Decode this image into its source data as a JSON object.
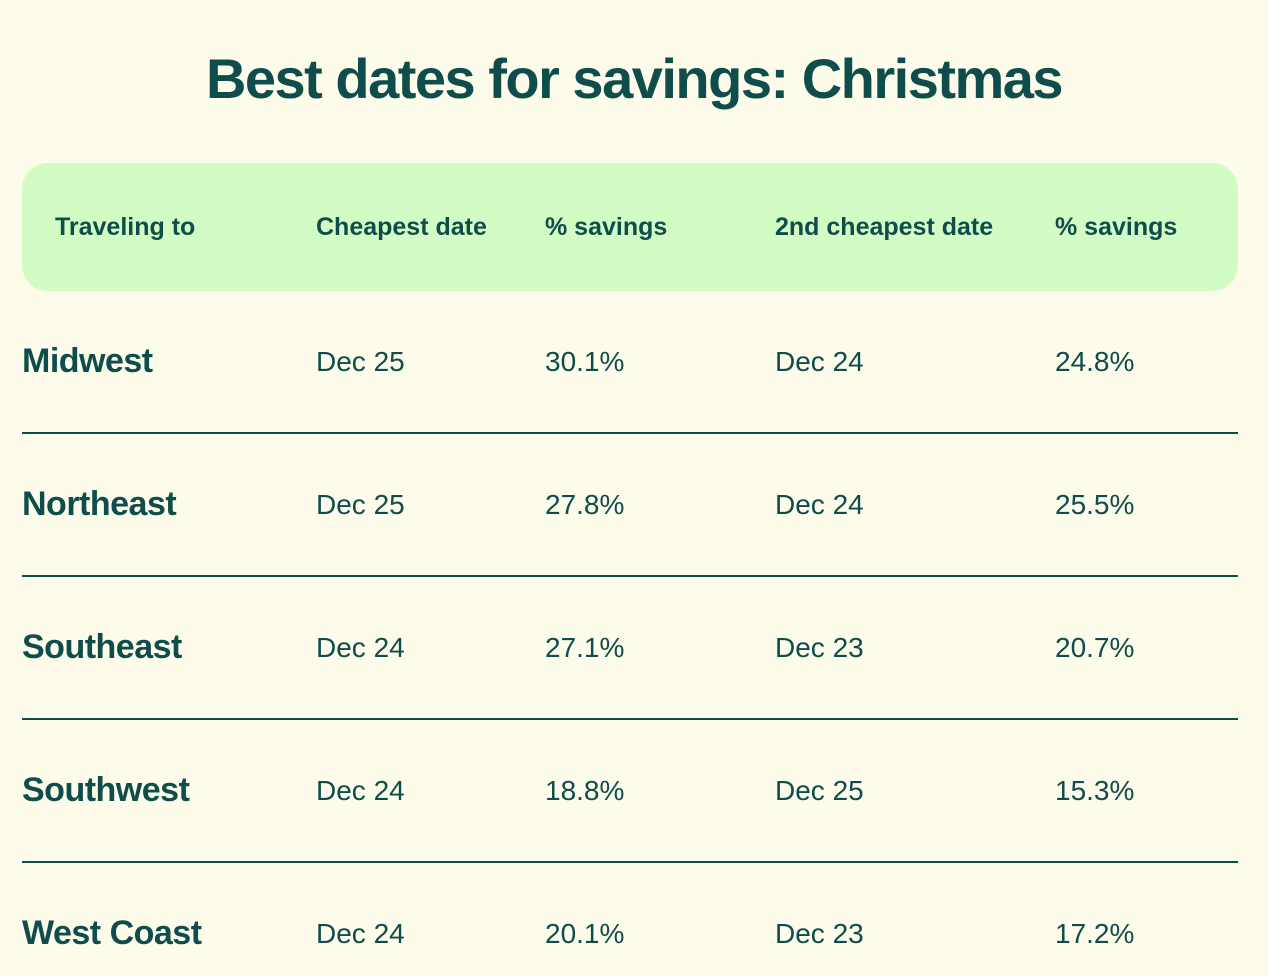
{
  "colors": {
    "background": "#fdfbe9",
    "header_bg": "#d3fcc5",
    "text": "#0e4d4b",
    "divider": "#0e4d4b"
  },
  "title": "Best dates for savings: Christmas",
  "table": {
    "headers": [
      "Traveling to",
      "Cheapest date",
      "% savings",
      "2nd cheapest date",
      "% savings"
    ],
    "rows": [
      {
        "region": "Midwest",
        "cheapest_date": "Dec 25",
        "cheapest_savings": "30.1%",
        "second_date": "Dec 24",
        "second_savings": "24.8%"
      },
      {
        "region": "Northeast",
        "cheapest_date": "Dec 25",
        "cheapest_savings": "27.8%",
        "second_date": "Dec 24",
        "second_savings": "25.5%"
      },
      {
        "region": "Southeast",
        "cheapest_date": "Dec 24",
        "cheapest_savings": "27.1%",
        "second_date": "Dec 23",
        "second_savings": "20.7%"
      },
      {
        "region": "Southwest",
        "cheapest_date": "Dec 24",
        "cheapest_savings": "18.8%",
        "second_date": "Dec 25",
        "second_savings": "15.3%"
      },
      {
        "region": "West Coast",
        "cheapest_date": "Dec 24",
        "cheapest_savings": "20.1%",
        "second_date": "Dec 23",
        "second_savings": "17.2%"
      }
    ]
  },
  "chart_data": {
    "type": "table",
    "title": "Best dates for savings: Christmas",
    "columns": [
      "Traveling to",
      "Cheapest date",
      "% savings",
      "2nd cheapest date",
      "% savings"
    ],
    "rows": [
      [
        "Midwest",
        "Dec 25",
        "30.1%",
        "Dec 24",
        "24.8%"
      ],
      [
        "Northeast",
        "Dec 25",
        "27.8%",
        "Dec 24",
        "25.5%"
      ],
      [
        "Southeast",
        "Dec 24",
        "27.1%",
        "Dec 23",
        "20.7%"
      ],
      [
        "Southwest",
        "Dec 24",
        "18.8%",
        "Dec 25",
        "15.3%"
      ],
      [
        "West Coast",
        "Dec 24",
        "20.1%",
        "Dec 23",
        "17.2%"
      ]
    ]
  }
}
